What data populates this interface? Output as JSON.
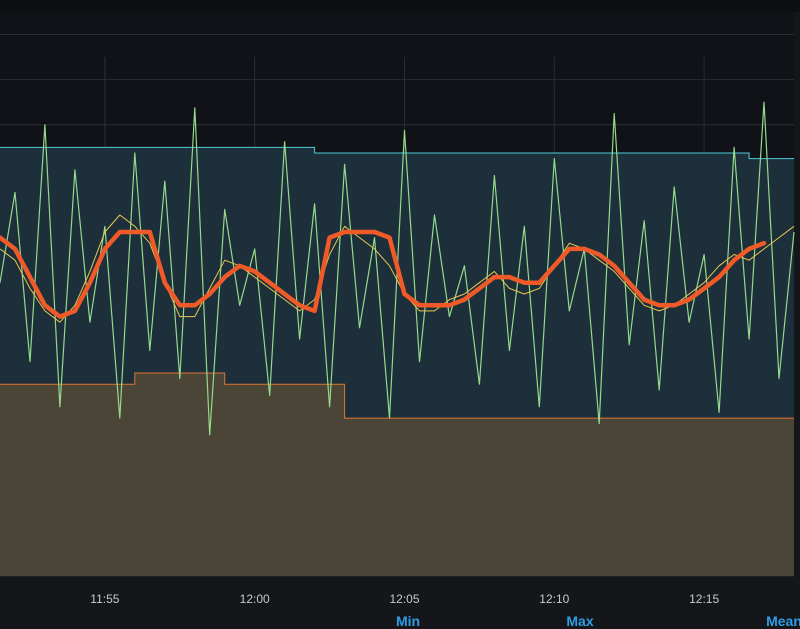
{
  "chart_data": {
    "type": "line",
    "title": "",
    "xlabel": "",
    "ylabel": "",
    "x_ticks": [
      "11:55",
      "12:00",
      "12:05",
      "12:10",
      "12:15"
    ],
    "x_range": [
      "11:51:30",
      "12:18:00"
    ],
    "ylim": [
      0,
      100
    ],
    "grid": true,
    "legend_headers": [
      "Min",
      "Max",
      "Mean"
    ],
    "colors": {
      "background": "#141619",
      "plot_background": "#111217",
      "grid": "#2b2e33",
      "raw": "#96d98d",
      "smoothed": "#f05a28",
      "moving_avg": "#e8c752",
      "upper": "#4ecbd8",
      "lower": "#e0752d",
      "upper_fill": "#1c2f3a",
      "lower_fill": "#4b4538"
    },
    "series": [
      {
        "role": "raw",
        "x": [
          "11:51:30",
          "11:52:00",
          "11:52:30",
          "11:53:00",
          "11:53:30",
          "11:54:00",
          "11:54:30",
          "11:55:00",
          "11:55:30",
          "11:56:00",
          "11:56:30",
          "11:57:00",
          "11:57:30",
          "11:58:00",
          "11:58:30",
          "11:59:00",
          "11:59:30",
          "12:00:00",
          "12:00:30",
          "12:01:00",
          "12:01:30",
          "12:02:00",
          "12:02:30",
          "12:03:00",
          "12:03:30",
          "12:04:00",
          "12:04:30",
          "12:05:00",
          "12:05:30",
          "12:06:00",
          "12:06:30",
          "12:07:00",
          "12:07:30",
          "12:08:00",
          "12:08:30",
          "12:09:00",
          "12:09:30",
          "12:10:00",
          "12:10:30",
          "12:11:00",
          "12:11:30",
          "12:12:00",
          "12:12:30",
          "12:13:00",
          "12:13:30",
          "12:14:00",
          "12:14:30",
          "12:15:00",
          "12:15:30",
          "12:16:00",
          "12:16:30",
          "12:17:00",
          "12:17:30",
          "12:18:00"
        ],
        "values": [
          52,
          68,
          38,
          80,
          30,
          72,
          45,
          62,
          28,
          75,
          40,
          70,
          35,
          83,
          25,
          65,
          48,
          58,
          32,
          77,
          42,
          66,
          30,
          73,
          44,
          60,
          28,
          79,
          38,
          64,
          46,
          55,
          34,
          71,
          40,
          62,
          30,
          74,
          47,
          58,
          27,
          82,
          41,
          63,
          33,
          69,
          45,
          57,
          29,
          76,
          42,
          84,
          35,
          61
        ]
      },
      {
        "role": "smoothed",
        "x": [
          "11:51:30",
          "11:52:00",
          "11:52:30",
          "11:53:00",
          "11:53:30",
          "11:54:00",
          "11:54:30",
          "11:55:00",
          "11:55:30",
          "11:56:00",
          "11:56:30",
          "11:57:00",
          "11:57:30",
          "11:58:00",
          "11:58:30",
          "11:59:00",
          "11:59:30",
          "12:00:00",
          "12:00:30",
          "12:01:00",
          "12:01:30",
          "12:02:00",
          "12:02:30",
          "12:03:00",
          "12:03:30",
          "12:04:00",
          "12:04:30",
          "12:05:00",
          "12:05:30",
          "12:06:00",
          "12:06:30",
          "12:07:00",
          "12:07:30",
          "12:08:00",
          "12:08:30",
          "12:09:00",
          "12:09:30",
          "12:10:00",
          "12:10:30",
          "12:11:00",
          "12:11:30",
          "12:12:00",
          "12:12:30",
          "12:13:00",
          "12:13:30",
          "12:14:00",
          "12:14:30",
          "12:15:00",
          "12:15:30",
          "12:16:00",
          "12:16:30",
          "12:17:00",
          "12:17:30",
          "12:18:00"
        ],
        "values": [
          60,
          58,
          53,
          48,
          46,
          47,
          52,
          58,
          61,
          61,
          61,
          52,
          48,
          48,
          50,
          53,
          55,
          54,
          52,
          50,
          48,
          47,
          60,
          61,
          61,
          61,
          60,
          50,
          48,
          48,
          48,
          49,
          51,
          53,
          53,
          52,
          52,
          55,
          58,
          58,
          57,
          55,
          52,
          49,
          48,
          48,
          49,
          51,
          53,
          56,
          58,
          59,
          null,
          null
        ]
      },
      {
        "role": "moving_avg",
        "x": [
          "11:51:30",
          "11:52:00",
          "11:52:30",
          "11:53:00",
          "11:53:30",
          "11:54:00",
          "11:54:30",
          "11:55:00",
          "11:55:30",
          "11:56:00",
          "11:56:30",
          "11:57:00",
          "11:57:30",
          "11:58:00",
          "11:58:30",
          "11:59:00",
          "11:59:30",
          "12:00:00",
          "12:00:30",
          "12:01:00",
          "12:01:30",
          "12:02:00",
          "12:02:30",
          "12:03:00",
          "12:03:30",
          "12:04:00",
          "12:04:30",
          "12:05:00",
          "12:05:30",
          "12:06:00",
          "12:06:30",
          "12:07:00",
          "12:07:30",
          "12:08:00",
          "12:08:30",
          "12:09:00",
          "12:09:30",
          "12:10:00",
          "12:10:30",
          "12:11:00",
          "12:11:30",
          "12:12:00",
          "12:12:30",
          "12:13:00",
          "12:13:30",
          "12:14:00",
          "12:14:30",
          "12:15:00",
          "12:15:30",
          "12:16:00",
          "12:16:30",
          "12:17:00",
          "12:17:30",
          "12:18:00"
        ],
        "values": [
          58,
          56,
          51,
          47,
          45,
          48,
          54,
          61,
          64,
          62,
          59,
          52,
          46,
          46,
          51,
          56,
          55,
          53,
          51,
          49,
          47,
          49,
          57,
          62,
          60,
          58,
          55,
          50,
          47,
          47,
          49,
          50,
          52,
          54,
          51,
          50,
          51,
          55,
          59,
          58,
          56,
          54,
          51,
          48,
          47,
          48,
          50,
          52,
          55,
          57,
          56,
          58,
          60,
          62
        ]
      },
      {
        "role": "upper",
        "x": [
          "11:51:30",
          "11:57:00",
          "12:02:00",
          "12:08:00",
          "12:12:00",
          "12:16:30",
          "12:18:00"
        ],
        "values": [
          76,
          76,
          75,
          75,
          75,
          74,
          74
        ]
      },
      {
        "role": "lower",
        "x": [
          "11:51:30",
          "11:52:00",
          "11:53:30",
          "11:54:30",
          "11:56:00",
          "11:57:00",
          "11:58:00",
          "11:59:00",
          "12:01:00",
          "12:02:00",
          "12:03:00",
          "12:05:00",
          "12:10:00",
          "12:14:00",
          "12:16:00",
          "12:18:00"
        ],
        "values": [
          34,
          34,
          34,
          34,
          36,
          36,
          36,
          34,
          34,
          34,
          28,
          28,
          28,
          28,
          28,
          28
        ]
      }
    ]
  }
}
